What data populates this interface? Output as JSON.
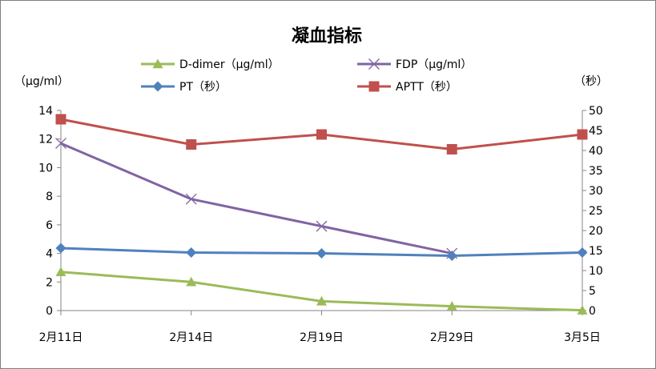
{
  "chart_data": {
    "type": "line",
    "title": "凝血指标",
    "y_left_unit": "（μg/ml）",
    "y_right_unit": "（秒）",
    "categories": [
      "2月11日",
      "2月14日",
      "2月19日",
      "2月29日",
      "3月5日"
    ],
    "y_left": {
      "ylim": [
        0,
        14
      ],
      "ticks": [
        "0",
        "2",
        "4",
        "6",
        "8",
        "10",
        "12",
        "14"
      ]
    },
    "y_right": {
      "ylim": [
        0,
        50
      ],
      "ticks": [
        "0",
        "5",
        "10",
        "15",
        "20",
        "25",
        "30",
        "35",
        "40",
        "45",
        "50"
      ]
    },
    "grid": false,
    "legend_position": "top",
    "series": [
      {
        "name": "D-dimer（μg/ml）",
        "axis": "left",
        "color": "#9bbb59",
        "marker": "triangle",
        "values": [
          2.7,
          2.0,
          0.65,
          0.3,
          0.02
        ]
      },
      {
        "name": "FDP（μg/ml）",
        "axis": "left",
        "color": "#8064a2",
        "marker": "x",
        "values": [
          11.7,
          7.8,
          5.9,
          4.0,
          null
        ]
      },
      {
        "name": "PT（秒）",
        "axis": "right",
        "color": "#4f81bd",
        "marker": "diamond",
        "values": [
          15.6,
          14.5,
          14.3,
          13.7,
          14.5
        ]
      },
      {
        "name": "APTT（秒）",
        "axis": "right",
        "color": "#c0504d",
        "marker": "square",
        "values": [
          47.8,
          41.5,
          44.0,
          40.3,
          44.0
        ]
      }
    ]
  }
}
